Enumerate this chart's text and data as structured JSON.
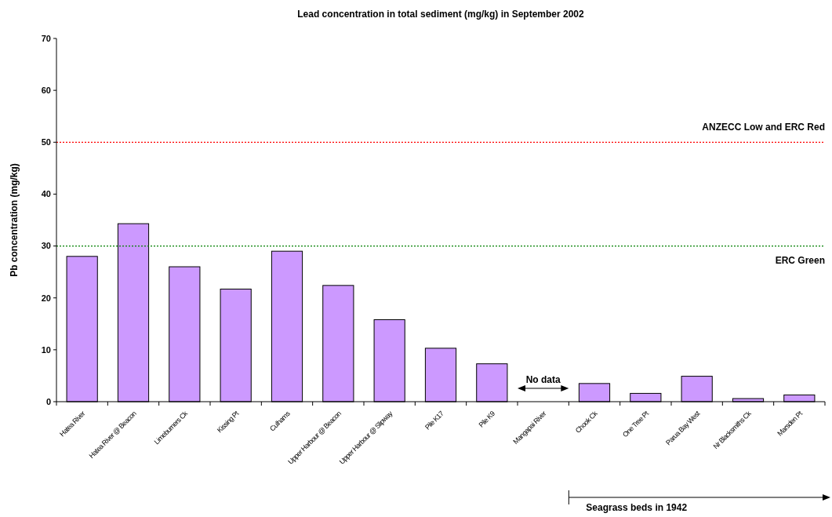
{
  "chart_data": {
    "type": "bar",
    "title": "Lead concentration in total sediment (mg/kg) in September 2002",
    "ylabel": "Pb concentration (mg/kg)",
    "categories": [
      "Hatea River",
      "Hatea River @ Beacon",
      "Limeburners Ck",
      "Kissing Pt",
      "Culhams",
      "Upper Harbour @ Beacon",
      "Upper Harbour @ Slipway",
      "Pile K17",
      "Pile K9",
      "Mangapai River",
      "Chook Ck",
      "One Tree Pt",
      "Parua Bay West",
      "Nr Blacksmiths Ck",
      "Marsden Pt"
    ],
    "values": [
      28,
      34.3,
      26,
      21.7,
      29,
      22.4,
      15.8,
      10.3,
      7.3,
      null,
      3.5,
      1.6,
      4.9,
      0.6,
      1.3
    ],
    "color": "#cc99ff",
    "ylim": [
      0,
      70
    ],
    "yticks": [
      0,
      10,
      20,
      30,
      40,
      50,
      60,
      70
    ],
    "grid": false,
    "ref_lines": [
      {
        "axis": "y",
        "value": 50,
        "label": "ANZECC Low  and ERC Red",
        "color": "#ff0000",
        "line_style": "dotted"
      },
      {
        "axis": "y",
        "value": 30,
        "label": "ERC Green",
        "color": "#008000",
        "line_style": "dotted"
      }
    ],
    "annotations": [
      "No data",
      "Seagrass beds in 1942"
    ]
  }
}
